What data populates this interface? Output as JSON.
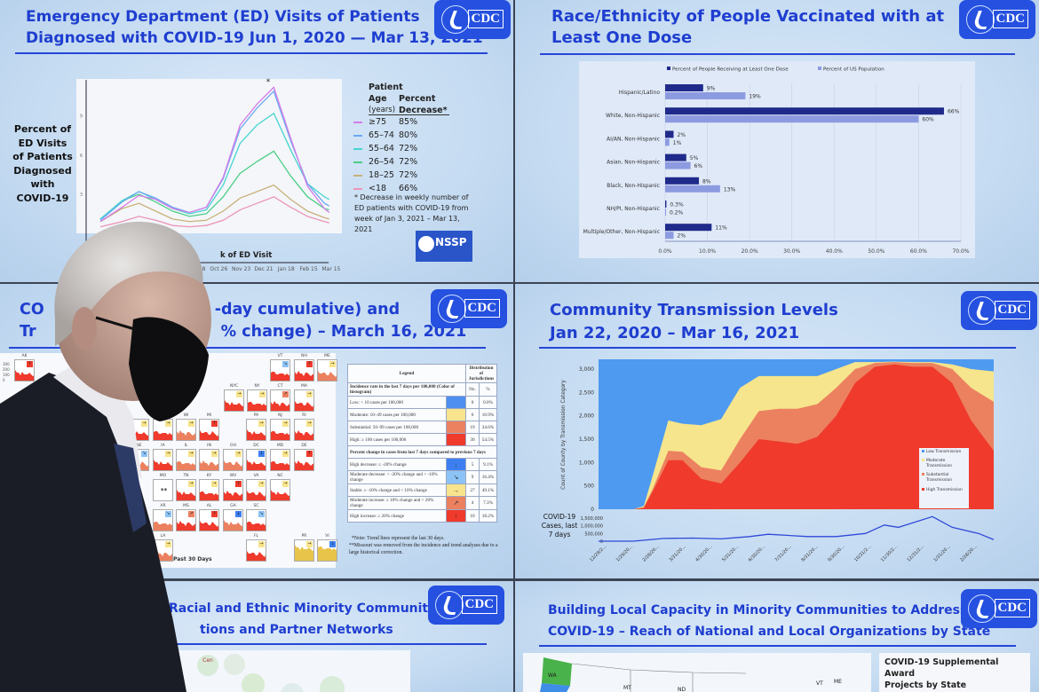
{
  "colors": {
    "title": "#1e3ed0",
    "high": "#ef3a2c",
    "substantial": "#ec8160",
    "moderate": "#f6e58c",
    "low": "#4e9af0",
    "dose_bar": "#1f2a8a",
    "pop_bar": "#8c9be0"
  },
  "logo_text": "CDC",
  "ed_panel": {
    "title_line1": "Emergency Department (ED) Visits of Patients",
    "title_line2": "Diagnosed with COVID-19 Jun 1, 2020 — Mar 13, 2021",
    "ylabel_lines": [
      "Percent of",
      "ED Visits",
      "of Patients",
      "Diagnosed",
      "with",
      "COVID-19"
    ],
    "xlabel": "k of ED Visit",
    "peak_mark": "*",
    "legend_head": {
      "col1_line1": "Patient",
      "col1_line2": "Age",
      "col1_line3": "(years)",
      "col2_line1": "Percent",
      "col2_line2": "Decrease*"
    },
    "footnote_lines": [
      "* Decrease in weekly number of",
      "ED patients with COVID-19 from",
      "week of Jan 3, 2021 – Mar 13,",
      "2021"
    ],
    "nssp_logo": "NSSP"
  },
  "vax_panel": {
    "title_line1": "Race/Ethnicity of People Vaccinated with at",
    "title_line2": "Least One Dose"
  },
  "map_panel": {
    "title_line1_visible": "-day cumulative) and",
    "title_line1_start": "CO",
    "title_line2_start": "Tr",
    "title_line2_visible": "% change) – March 16, 2021",
    "past_label": "Past 30 Days",
    "ak_axis": [
      "300",
      "200",
      "100",
      "0"
    ],
    "missing_mark": "**",
    "tiles": [
      {
        "state": "AK",
        "level": "high",
        "arrow": "↑"
      },
      {
        "state": "VT",
        "level": "high",
        "arrow": "↘"
      },
      {
        "state": "NH",
        "level": "high",
        "arrow": "↑"
      },
      {
        "state": "ME",
        "level": "substantial",
        "arrow": "→"
      },
      {
        "state": "NYC",
        "level": "high",
        "arrow": "→"
      },
      {
        "state": "NY",
        "level": "high",
        "arrow": "→"
      },
      {
        "state": "CT",
        "level": "high",
        "arrow": "↗"
      },
      {
        "state": "MA",
        "level": "high",
        "arrow": "→"
      },
      {
        "state": "",
        "level": "high",
        "arrow": "→"
      },
      {
        "state": "",
        "level": "high",
        "arrow": "→"
      },
      {
        "state": "WI",
        "level": "substantial",
        "arrow": "→"
      },
      {
        "state": "MI",
        "level": "high",
        "arrow": "↑"
      },
      {
        "state": "PA",
        "level": "high",
        "arrow": "→"
      },
      {
        "state": "NJ",
        "level": "high",
        "arrow": "→"
      },
      {
        "state": "RI",
        "level": "high",
        "arrow": "→"
      },
      {
        "state": "NE",
        "level": "substantial",
        "arrow": "↘"
      },
      {
        "state": "IA",
        "level": "high",
        "arrow": "→"
      },
      {
        "state": "IL",
        "level": "substantial",
        "arrow": "→"
      },
      {
        "state": "IN",
        "level": "substantial",
        "arrow": "→"
      },
      {
        "state": "OH",
        "level": "substantial",
        "arrow": "→"
      },
      {
        "state": "DC",
        "level": "high",
        "arrow": "↓"
      },
      {
        "state": "MD",
        "level": "high",
        "arrow": "→"
      },
      {
        "state": "DE",
        "level": "high",
        "arrow": "↑"
      },
      {
        "state": "MO",
        "level": "none",
        "arrow": ""
      },
      {
        "state": "TN",
        "level": "high",
        "arrow": "→"
      },
      {
        "state": "KY",
        "level": "high",
        "arrow": "→"
      },
      {
        "state": "WV",
        "level": "high",
        "arrow": "↑"
      },
      {
        "state": "VA",
        "level": "high",
        "arrow": "→"
      },
      {
        "state": "NC",
        "level": "high",
        "arrow": "→"
      },
      {
        "state": "AR",
        "level": "substantial",
        "arrow": "↘"
      },
      {
        "state": "MS",
        "level": "high",
        "arrow": "↗"
      },
      {
        "state": "AL",
        "level": "high",
        "arrow": "↑"
      },
      {
        "state": "GA",
        "level": "substantial",
        "arrow": "↓"
      },
      {
        "state": "SC",
        "level": "high",
        "arrow": "↘"
      },
      {
        "state": "LA",
        "level": "substantial",
        "arrow": "→"
      },
      {
        "state": "FL",
        "level": "high",
        "arrow": "→"
      },
      {
        "state": "PR",
        "level": "moderate",
        "arrow": "→"
      },
      {
        "state": "VI",
        "level": "moderate",
        "arrow": "↓"
      }
    ],
    "legend": {
      "head": "Legend",
      "dist_head": "Distribution of Jurisdictions",
      "no_head": "No.",
      "pct_head": "%",
      "section1": "Incidence rate in the last 7 days per 100,000 (Color of histogram)",
      "section2": "Percent change in cases from last 7 days compared to previous 7 days",
      "incidence_rows": [
        {
          "label": "Low: < 10 cases per 100,000",
          "color": "#4e8ff0",
          "no": "0",
          "pct": "0.0%"
        },
        {
          "label": "Moderate: 10–49 cases per 100,000",
          "color": "#f8e48c",
          "no": "6",
          "pct": "10.9%"
        },
        {
          "label": "Substantial: 50–99 cases per 100,000",
          "color": "#ec8160",
          "no": "19",
          "pct": "34.6%"
        },
        {
          "label": "High: ≥ 100 cases per 100,000",
          "color": "#ef3a2c",
          "no": "30",
          "pct": "54.5%"
        }
      ],
      "change_rows": [
        {
          "label": "High decrease: ≤ -20% change",
          "color": "#3d7ff0",
          "arrow": "↓",
          "no": "5",
          "pct": "9.1%"
        },
        {
          "label": "Moderate decrease: > -20% change and < -10% change",
          "color": "#8cc3f6",
          "arrow": "↘",
          "no": "9",
          "pct": "16.4%"
        },
        {
          "label": "Stable: ≥ -10% change and < 10% change",
          "color": "#f8e48c",
          "arrow": "→",
          "no": "27",
          "pct": "49.1%"
        },
        {
          "label": "Moderate increase: ≥ 10% change and < 20% change",
          "color": "#ec8160",
          "arrow": "↗",
          "no": "4",
          "pct": "7.3%"
        },
        {
          "label": "High increase: ≥ 20% change",
          "color": "#ef3a2c",
          "arrow": "↑",
          "no": "10",
          "pct": "18.2%"
        }
      ],
      "note1": "*Note: Trend lines represent the last 30 days.",
      "note2": "**Missouri was removed from the incidence and trend analyses due to a large historical correction."
    }
  },
  "transmission_panel": {
    "title_line1": "Community Transmission Levels",
    "title_line2": "Jan 22, 2020 – Mar 16, 2021",
    "cases_label_lines": [
      "COVID-19",
      "Cases, last",
      "7 days"
    ]
  },
  "partners_panel": {
    "title_line1_visible": "Racial and Ethnic Minority Communities",
    "title_line2_visible": "tions and  Partner Networks",
    "node_label": "Cen"
  },
  "capacity_panel": {
    "title_line1": "Building Local Capacity in Minority Communities to Address",
    "title_line2": "COVID-19 – Reach of National and Local Organizations by State",
    "map_labels": [
      "WA",
      "MT",
      "ND",
      "VT",
      "ME"
    ],
    "legend_title_line1": "COVID-19 Supplemental Award",
    "legend_title_line2": "Projects by State"
  },
  "chart_data": [
    {
      "type": "line",
      "xlabel": "k of ED Visit",
      "ylabel": "Percent of ED Visits of Patients Diagnosed with COVID-19",
      "yticks": [
        3,
        6,
        9
      ],
      "xticks": [
        "Sep 28",
        "Oct 26",
        "Nov 23",
        "Dec 21",
        "Jan 18",
        "Feb 15",
        "Mar 15"
      ],
      "x": [
        "2020-06-01",
        "2020-06-28",
        "2020-07-19",
        "2020-08-09",
        "2020-08-30",
        "2020-09-20",
        "2020-10-11",
        "2020-11-01",
        "2020-11-22",
        "2020-12-13",
        "2021-01-03",
        "2021-01-24",
        "2021-02-14",
        "2021-03-07",
        "2021-03-13"
      ],
      "series": [
        {
          "name": "≥75",
          "decrease": "85%",
          "color": "#d57be8",
          "values": [
            0.9,
            2.0,
            2.9,
            2.6,
            1.9,
            1.6,
            2.0,
            4.3,
            8.3,
            9.9,
            11.2,
            7.3,
            3.6,
            1.9,
            1.6
          ]
        },
        {
          "name": "65–74",
          "decrease": "80%",
          "color": "#6aa9f2",
          "values": [
            1.0,
            2.4,
            3.2,
            2.7,
            2.0,
            1.6,
            2.0,
            4.2,
            8.0,
            9.6,
            10.9,
            7.1,
            3.8,
            2.3,
            2.1
          ]
        },
        {
          "name": "55–64",
          "decrease": "72%",
          "color": "#45d4d0",
          "values": [
            1.1,
            2.5,
            3.2,
            2.6,
            1.9,
            1.5,
            1.8,
            3.7,
            6.9,
            8.3,
            9.2,
            6.4,
            3.8,
            2.8,
            2.6
          ]
        },
        {
          "name": "26–54",
          "decrease": "72%",
          "color": "#4bcf86",
          "values": [
            1.1,
            2.5,
            3.0,
            2.4,
            1.7,
            1.3,
            1.5,
            2.8,
            4.6,
            5.5,
            6.3,
            4.4,
            2.8,
            1.9,
            1.8
          ]
        },
        {
          "name": "18–25",
          "decrease": "72%",
          "color": "#c9b07a",
          "values": [
            0.9,
            1.9,
            2.3,
            1.7,
            1.1,
            0.9,
            1.0,
            1.7,
            2.7,
            3.2,
            3.7,
            2.6,
            1.7,
            1.2,
            1.1
          ]
        },
        {
          "name": "<18",
          "decrease": "66%",
          "color": "#ec94b8",
          "values": [
            0.5,
            0.9,
            1.3,
            1.0,
            0.6,
            0.5,
            0.6,
            1.0,
            1.8,
            2.3,
            2.8,
            2.0,
            1.3,
            0.9,
            0.8
          ]
        }
      ]
    },
    {
      "type": "bar",
      "orientation": "horizontal",
      "categories": [
        "Hispanic/Latino",
        "White, Non-Hispanic",
        "AI/AN, Non-Hispanic",
        "Asian, Non-Hispanic",
        "Black, Non-Hispanic",
        "NH/PI, Non-Hispanic",
        "Multiple/Other, Non-Hispanic"
      ],
      "series": [
        {
          "name": "Percent of People Receiving at Least One Dose",
          "values": [
            9,
            66,
            2,
            5,
            8,
            0.3,
            11
          ],
          "labels": [
            "9%",
            "66%",
            "2%",
            "5%",
            "8%",
            "0.3%",
            "11%"
          ]
        },
        {
          "name": "Percent of US Population",
          "values": [
            19,
            60,
            1,
            6,
            13,
            0.2,
            2
          ],
          "labels": [
            "19%",
            "60%",
            "1%",
            "6%",
            "13%",
            "0.2%",
            "2%"
          ]
        }
      ],
      "xlim": [
        0,
        70
      ],
      "xticks": [
        "0.0%",
        "10.0%",
        "20.0%",
        "30.0%",
        "40.0%",
        "50.0%",
        "60.0%",
        "70.0%"
      ],
      "legend": "top",
      "grid": true
    },
    {
      "type": "area",
      "stacked": true,
      "ylabel": "Count of County by Transmission Category",
      "yticks": [
        "0",
        "500",
        "1,000",
        "1,500",
        "2,000",
        "2,500",
        "3,000"
      ],
      "ylim": [
        0,
        3200
      ],
      "xticks": [
        "12/29/2…",
        "1/29/20…",
        "2/28/20…",
        "3/31/20…",
        "4/30/20…",
        "5/31/20…",
        "6/30/20…",
        "7/31/20…",
        "8/31/20…",
        "9/30/20…",
        "10/31/2…",
        "11/30/2…",
        "12/31/2…",
        "1/31/20…",
        "2/28/20…"
      ],
      "legend": "right",
      "legend_entries": [
        "Low Transmission",
        "Moderate Transmission",
        "Substantial Transmission",
        "High Transmission"
      ],
      "x": [
        "2020-01-22",
        "2020-02-28",
        "2020-03-10",
        "2020-03-20",
        "2020-04-05",
        "2020-04-20",
        "2020-05-10",
        "2020-05-31",
        "2020-06-20",
        "2020-07-10",
        "2020-07-31",
        "2020-08-20",
        "2020-09-10",
        "2020-09-30",
        "2020-10-20",
        "2020-11-10",
        "2020-12-01",
        "2020-12-20",
        "2021-01-10",
        "2021-01-31",
        "2021-02-20",
        "2021-03-16"
      ],
      "high": [
        0,
        0,
        30,
        400,
        1050,
        1050,
        650,
        550,
        1000,
        1500,
        1450,
        1400,
        1550,
        2000,
        2700,
        3050,
        3100,
        3050,
        3050,
        2700,
        1900,
        1250
      ],
      "substantial": [
        0,
        0,
        10,
        60,
        200,
        180,
        250,
        280,
        500,
        600,
        700,
        750,
        700,
        600,
        300,
        80,
        50,
        80,
        80,
        300,
        700,
        1050
      ],
      "moderate": [
        0,
        0,
        30,
        300,
        650,
        600,
        900,
        1100,
        1100,
        750,
        700,
        700,
        600,
        400,
        150,
        20,
        10,
        20,
        20,
        100,
        400,
        650
      ],
      "low_total": 3200
    },
    {
      "type": "line",
      "ylabel": "COVID-19 Cases, last 7 days",
      "yticks": [
        "0",
        "500,000",
        "1,000,000",
        "1,500,000"
      ],
      "ylim": [
        0,
        1500000
      ],
      "x": [
        "2020-01-22",
        "2020-02-28",
        "2020-03-31",
        "2020-04-30",
        "2020-05-31",
        "2020-06-30",
        "2020-07-20",
        "2020-08-31",
        "2020-09-30",
        "2020-10-31",
        "2020-11-20",
        "2020-12-05",
        "2021-01-10",
        "2021-01-31",
        "2021-02-28",
        "2021-03-16"
      ],
      "values": [
        0,
        0,
        180000,
        200000,
        150000,
        300000,
        450000,
        300000,
        300000,
        500000,
        1050000,
        900000,
        1600000,
        900000,
        500000,
        100000
      ]
    }
  ]
}
